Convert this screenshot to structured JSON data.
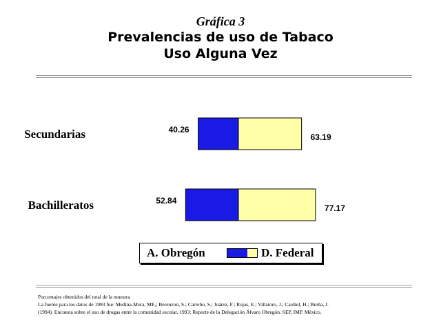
{
  "header": {
    "label": "Gráfica 3",
    "title": "Prevalencias de uso de Tabaco",
    "subtitle": "Uso Alguna Vez"
  },
  "colors": {
    "a_obregon": "#1a1ae6",
    "d_federal": "#ffffa8"
  },
  "chart_data": {
    "type": "bar",
    "orientation": "horizontal",
    "categories": [
      "Secundarias",
      "Bachilleratos"
    ],
    "series": [
      {
        "name": "A. Obregón",
        "values": [
          40.26,
          52.84
        ],
        "color": "#1a1ae6"
      },
      {
        "name": "D. Federal",
        "values": [
          63.19,
          77.17
        ],
        "color": "#ffffa8"
      }
    ],
    "legend_placement": "bottom",
    "grid": false
  },
  "legend": {
    "item1": "A. Obregón",
    "item2": "D. Federal"
  },
  "footnote": {
    "line1": "Porcentajes obtenidos del total de la muestra",
    "line2": "La fuente para los datos de 1993 fue: Medina-Mora, ME,; Berenzon, S.; Carreño, S.; Juárez, F.; Rojas, E.; Villatoro, J.; Cardiel, H.; Breña, J.",
    "line3": "(1994). Encuesta sobre el uso de drogas entre la comunidad escolar, 1993: Reporte de la Delegación Álvaro Obregón. SEP, IMP. México."
  }
}
